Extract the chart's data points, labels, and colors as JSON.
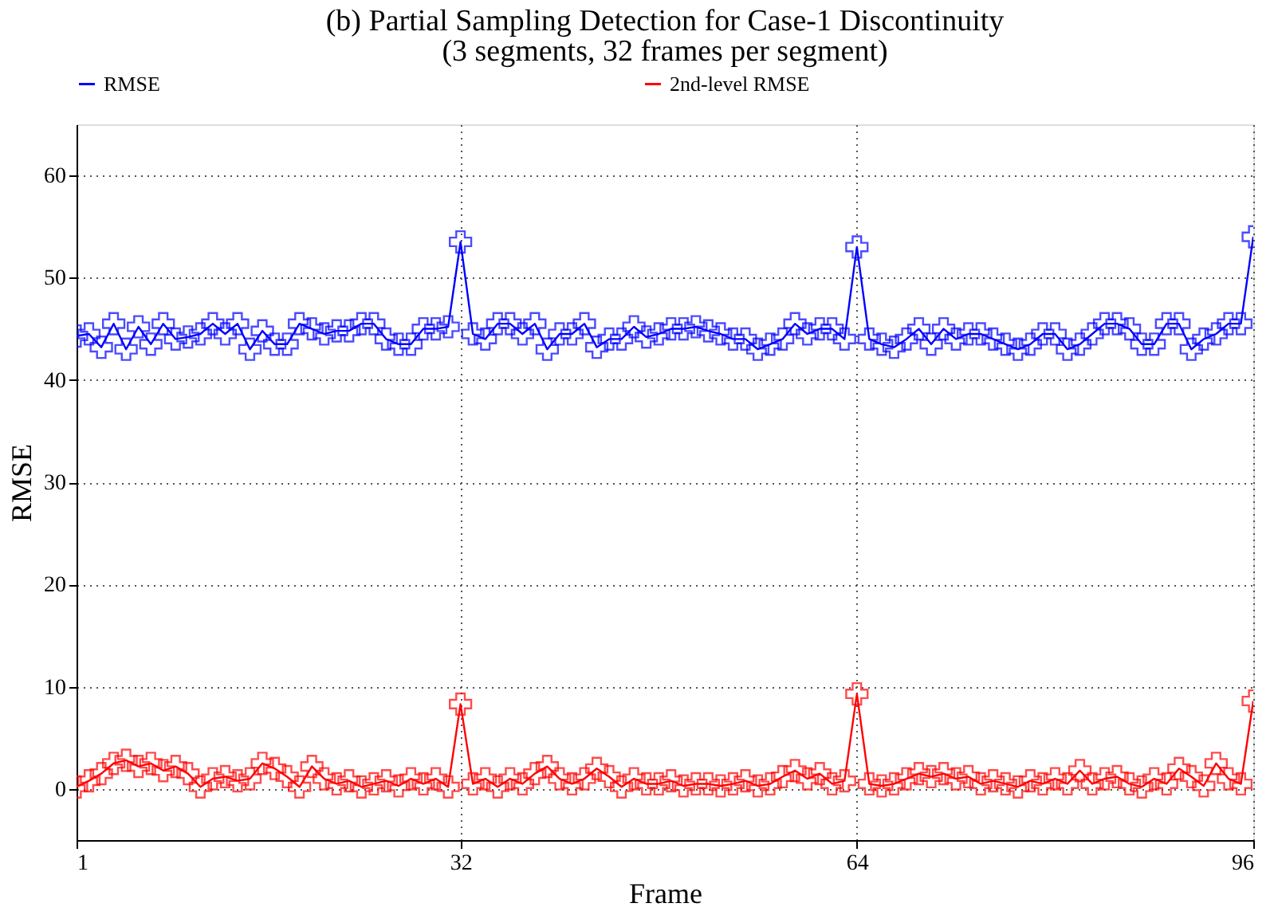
{
  "chart_data": {
    "type": "line",
    "title": "(b) Partial Sampling Detection for Case-1 Discontinuity",
    "subtitle": "(3 segments, 32 frames per segment)",
    "xlabel": "Frame",
    "ylabel": "RMSE",
    "x": [
      1,
      2,
      3,
      4,
      5,
      6,
      7,
      8,
      9,
      10,
      11,
      12,
      13,
      14,
      15,
      16,
      17,
      18,
      19,
      20,
      21,
      22,
      23,
      24,
      25,
      26,
      27,
      28,
      29,
      30,
      31,
      32,
      33,
      34,
      35,
      36,
      37,
      38,
      39,
      40,
      41,
      42,
      43,
      44,
      45,
      46,
      47,
      48,
      49,
      50,
      51,
      52,
      53,
      54,
      55,
      56,
      57,
      58,
      59,
      60,
      61,
      62,
      63,
      64,
      65,
      66,
      67,
      68,
      69,
      70,
      71,
      72,
      73,
      74,
      75,
      76,
      77,
      78,
      79,
      80,
      81,
      82,
      83,
      84,
      85,
      86,
      87,
      88,
      89,
      90,
      91,
      92,
      93,
      94,
      95,
      96
    ],
    "series": [
      {
        "name": "RMSE",
        "color": "#0000ff",
        "values": [
          44.3,
          44.5,
          43.2,
          45.5,
          43,
          45.2,
          43.5,
          45.5,
          44,
          44.2,
          44.5,
          45.5,
          44.5,
          45.5,
          43,
          44.8,
          43.5,
          43.5,
          45.5,
          45,
          44.5,
          44.8,
          44.8,
          45.5,
          45.5,
          44,
          43.5,
          43.5,
          45,
          45,
          45.2,
          53.5,
          44.5,
          44,
          45.5,
          45.5,
          44.5,
          45.5,
          43,
          44.5,
          44.5,
          45.5,
          43.2,
          44,
          44,
          45.2,
          44.2,
          44.5,
          45,
          45,
          45.2,
          44.8,
          44.5,
          44,
          44,
          43,
          43.5,
          44,
          45.5,
          44.5,
          45,
          45,
          44,
          53,
          44,
          43.5,
          43.2,
          44,
          45,
          43.5,
          45,
          44,
          44.5,
          44.5,
          44,
          43.5,
          43,
          43.5,
          44.5,
          44.5,
          43,
          43.5,
          44.5,
          45.5,
          45.5,
          45,
          43.5,
          43.5,
          45.5,
          45.5,
          43,
          44,
          44.5,
          45.5,
          45.5,
          54
        ]
      },
      {
        "name": "2nd-level RMSE",
        "color": "#ff0000",
        "values": [
          0.2,
          0.8,
          1.5,
          2.5,
          2.8,
          2.2,
          2.5,
          1.8,
          2.2,
          1.5,
          0.2,
          1,
          1.2,
          0.8,
          1,
          2.5,
          2,
          1.2,
          0.2,
          2.2,
          1,
          0.5,
          0.8,
          0.2,
          0.5,
          0.8,
          0.3,
          1,
          0.5,
          1,
          0.2,
          8.3,
          0.5,
          1,
          0.2,
          1,
          0.5,
          1.5,
          2.2,
          1,
          0.5,
          1,
          2,
          1.2,
          0.2,
          1,
          0.5,
          0.5,
          0.8,
          0.3,
          0.5,
          0.5,
          0.3,
          0.5,
          0.8,
          0.3,
          0.5,
          1.2,
          1.8,
          1,
          1.5,
          0.5,
          0.8,
          9.3,
          0.5,
          0.3,
          0.5,
          1,
          1.5,
          1.2,
          1.5,
          1,
          1.2,
          0.5,
          0.8,
          0.5,
          0.2,
          0.8,
          0.5,
          1,
          0.5,
          1.8,
          0.5,
          1,
          1.2,
          0.5,
          0.2,
          1,
          0.5,
          2,
          1.2,
          0.3,
          2.5,
          1,
          0.5,
          8.6
        ]
      }
    ],
    "xlim": [
      1,
      96
    ],
    "xticks": [
      1,
      32,
      64,
      96
    ],
    "ylim": [
      -5,
      65
    ],
    "yticks": [
      0,
      10,
      20,
      30,
      40,
      50,
      60
    ],
    "grid": true,
    "legend": "top",
    "marker": "cross",
    "line_style": "solid"
  }
}
